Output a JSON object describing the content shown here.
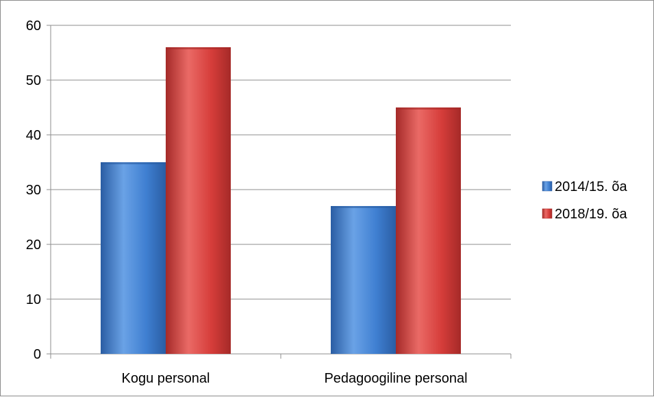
{
  "chart_data": {
    "type": "bar",
    "categories": [
      "Kogu personal",
      "Pedagoogiline personal"
    ],
    "series": [
      {
        "name": "2014/15. õa",
        "values": [
          35,
          27
        ],
        "color": "#3f7fd1",
        "color_dark": "#2a5da3",
        "color_light": "#6aa2e6"
      },
      {
        "name": "2018/19. õa",
        "values": [
          56,
          45
        ],
        "color": "#d63d3a",
        "color_dark": "#a52a28",
        "color_light": "#ea6a66"
      }
    ],
    "ylim": [
      0,
      60
    ],
    "yticks": [
      0,
      10,
      20,
      30,
      40,
      50,
      60
    ],
    "grid": true,
    "legend_position": "right"
  }
}
